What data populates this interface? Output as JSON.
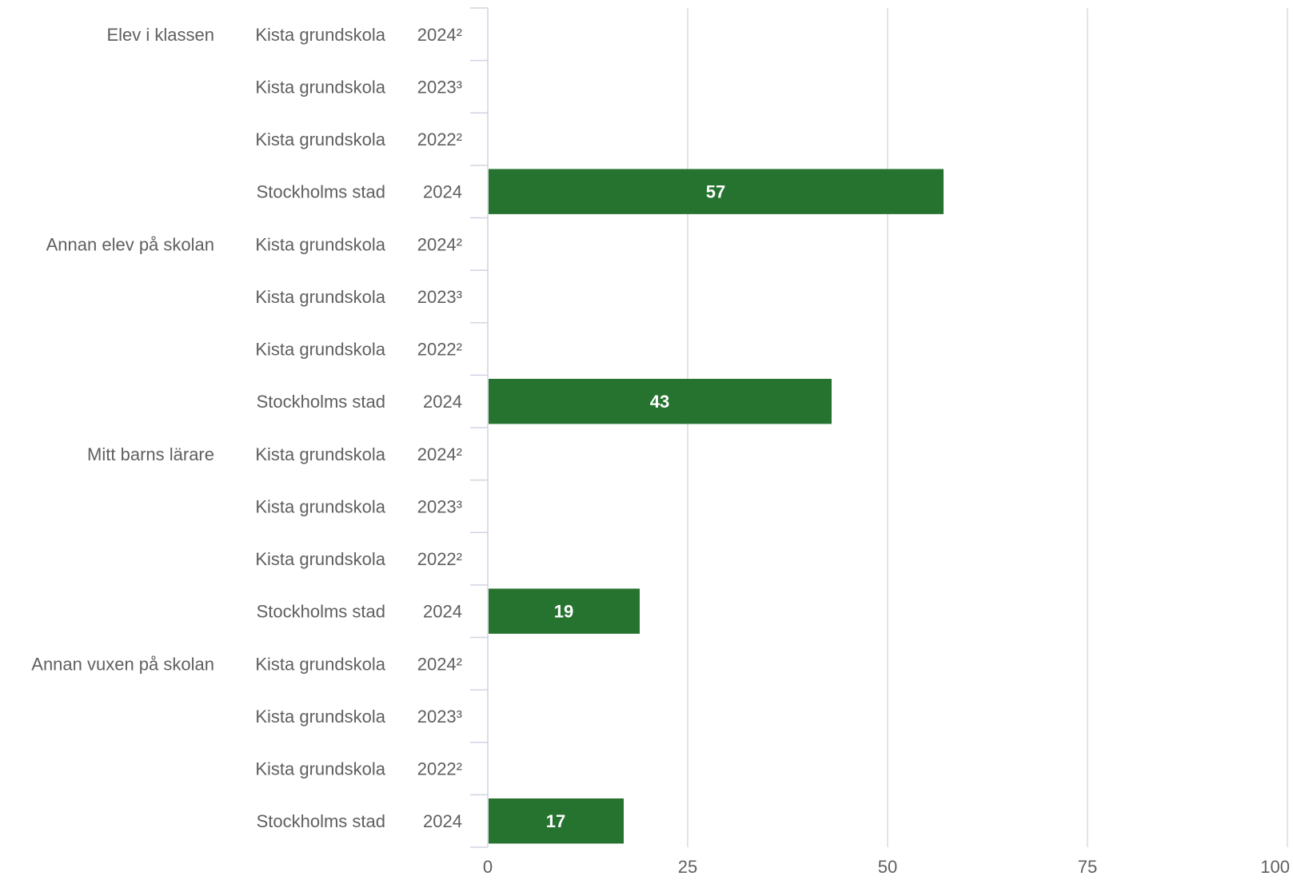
{
  "chart_data": {
    "type": "bar",
    "orientation": "horizontal",
    "xlim": [
      0,
      100
    ],
    "x_ticks": [
      "0",
      "25",
      "50",
      "75",
      "100"
    ],
    "grid": true,
    "bar_color": "#267330",
    "groups": [
      {
        "name": "Elev i klassen",
        "rows": [
          {
            "unit": "Kista grundskola",
            "year": "2024²",
            "value": null
          },
          {
            "unit": "Kista grundskola",
            "year": "2023³",
            "value": null
          },
          {
            "unit": "Kista grundskola",
            "year": "2022²",
            "value": null
          },
          {
            "unit": "Stockholms stad",
            "year": "2024",
            "value": 57,
            "label": "57"
          }
        ]
      },
      {
        "name": "Annan elev på skolan",
        "rows": [
          {
            "unit": "Kista grundskola",
            "year": "2024²",
            "value": null
          },
          {
            "unit": "Kista grundskola",
            "year": "2023³",
            "value": null
          },
          {
            "unit": "Kista grundskola",
            "year": "2022²",
            "value": null
          },
          {
            "unit": "Stockholms stad",
            "year": "2024",
            "value": 43,
            "label": "43"
          }
        ]
      },
      {
        "name": "Mitt barns lärare",
        "rows": [
          {
            "unit": "Kista grundskola",
            "year": "2024²",
            "value": null
          },
          {
            "unit": "Kista grundskola",
            "year": "2023³",
            "value": null
          },
          {
            "unit": "Kista grundskola",
            "year": "2022²",
            "value": null
          },
          {
            "unit": "Stockholms stad",
            "year": "2024",
            "value": 19,
            "label": "19"
          }
        ]
      },
      {
        "name": "Annan vuxen på skolan",
        "rows": [
          {
            "unit": "Kista grundskola",
            "year": "2024²",
            "value": null
          },
          {
            "unit": "Kista grundskola",
            "year": "2023³",
            "value": null
          },
          {
            "unit": "Kista grundskola",
            "year": "2022²",
            "value": null
          },
          {
            "unit": "Stockholms stad",
            "year": "2024",
            "value": 17,
            "label": "17"
          }
        ]
      }
    ]
  }
}
